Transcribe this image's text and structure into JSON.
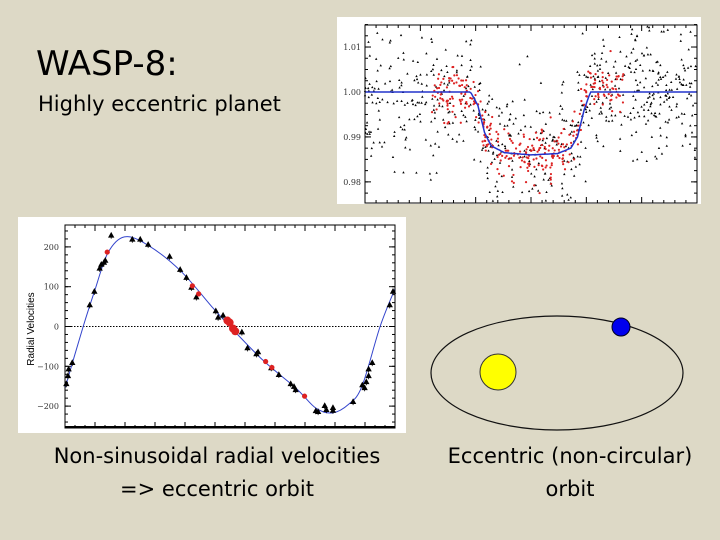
{
  "slide": {
    "title": "WASP-8:",
    "subtitle": "Highly eccentric planet",
    "rv_caption_line1": "Non-sinusoidal radial velocities",
    "rv_caption_line2": "=> eccentric orbit",
    "orbit_caption_line1": "Eccentric (non-circular)",
    "orbit_caption_line2": "orbit"
  },
  "colors": {
    "background": "#ddd9c6",
    "model": "#2233cc",
    "red_points": "#dd2222",
    "star": "#ffff00",
    "planet": "#0000ee"
  },
  "chart_data": [
    {
      "type": "scatter",
      "name": "transit light curve",
      "title": "",
      "xlabel": "",
      "ylabel": "",
      "xlim": [
        0,
        1
      ],
      "ylim": [
        0.9753,
        1.0149
      ],
      "yticks": [
        "0.98",
        "0.99",
        "1.00",
        "1.01"
      ],
      "ytick_values": [
        0.98,
        0.99,
        1.0,
        1.01
      ],
      "model": {
        "x": [
          0,
          0.318,
          0.34,
          0.36,
          0.38,
          0.42,
          0.5,
          0.58,
          0.62,
          0.64,
          0.66,
          0.679,
          1
        ],
        "y": [
          1.0,
          1.0,
          0.997,
          0.991,
          0.988,
          0.9865,
          0.986,
          0.9863,
          0.9875,
          0.99,
          0.996,
          1.0,
          1.0
        ]
      },
      "series_notes": "black: full photometry (scatter ~0.008), red: binned/high-precision photometry between x 0.2-0.8 (scatter ~0.003)"
    },
    {
      "type": "scatter",
      "name": "radial velocity curve",
      "ylabel": "Radial Velocities",
      "xlim": [
        0,
        1
      ],
      "ylim": [
        -255,
        255
      ],
      "yticks": [
        "200",
        "100",
        "0",
        "−100",
        "−200"
      ],
      "ytick_values": [
        200,
        100,
        0,
        -100,
        -200
      ],
      "black": {
        "x": [
          0.004,
          0.009,
          0.011,
          0.022,
          0.075,
          0.089,
          0.105,
          0.11,
          0.118,
          0.122,
          0.14,
          0.204,
          0.228,
          0.252,
          0.317,
          0.349,
          0.368,
          0.383,
          0.398,
          0.457,
          0.464,
          0.479,
          0.536,
          0.553,
          0.58,
          0.585,
          0.625,
          0.648,
          0.684,
          0.694,
          0.699,
          0.76,
          0.767,
          0.787,
          0.792,
          0.812,
          0.812,
          0.873,
          0.901,
          0.908,
          0.913,
          0.92,
          0.92,
          0.931,
          0.984,
          0.994
        ],
        "y": [
          -145,
          -125,
          -108,
          -92,
          53,
          87,
          145,
          155,
          160,
          165,
          228,
          218,
          218,
          205,
          175,
          142,
          122,
          97,
          73,
          38,
          22,
          27,
          -15,
          -55,
          -70,
          -65,
          -105,
          -122,
          -145,
          -152,
          -160,
          -213,
          -215,
          -200,
          -210,
          -205,
          -212,
          -190,
          -148,
          -155,
          -140,
          -125,
          -108,
          -92,
          53,
          87
        ]
      },
      "red": {
        "x": [
          0.128,
          0.386,
          0.405,
          0.492,
          0.499,
          0.509,
          0.516,
          0.608,
          0.627,
          0.726
        ],
        "y": [
          187,
          102,
          82,
          15,
          10,
          -5,
          -12,
          -88,
          -103,
          -175
        ]
      },
      "model": {
        "x": [
          0,
          0.055,
          0.09,
          0.13,
          0.18,
          0.25,
          0.35,
          0.45,
          0.5,
          0.6,
          0.7,
          0.76,
          0.81,
          0.86,
          0.9,
          0.955,
          1.0
        ],
        "y": [
          -155,
          0,
          90,
          185,
          225,
          205,
          140,
          45,
          0,
          -85,
          -155,
          -205,
          -217,
          -195,
          -150,
          0,
          95
        ]
      }
    }
  ]
}
